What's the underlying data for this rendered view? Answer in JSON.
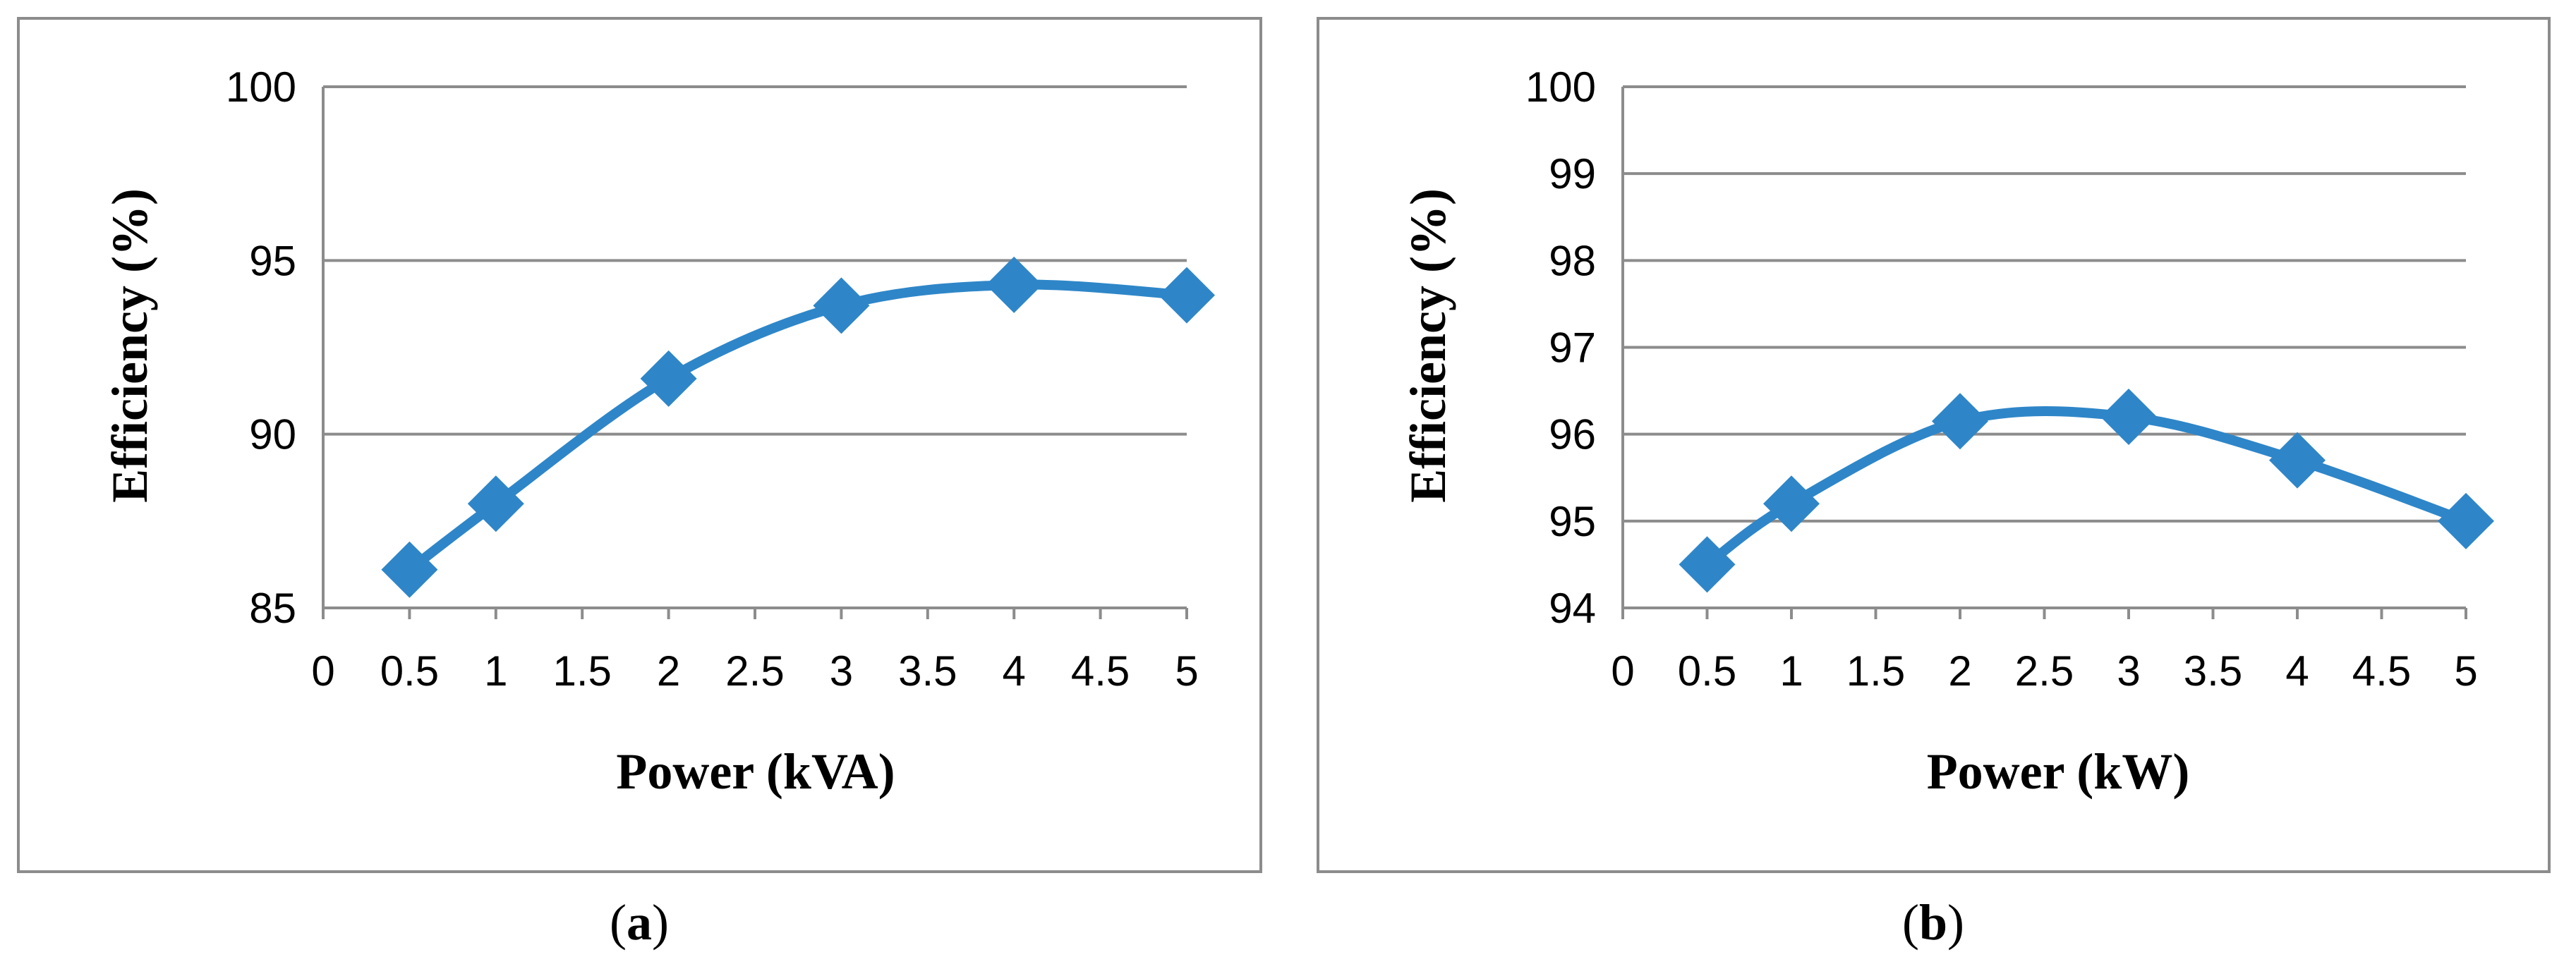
{
  "chart_data": [
    {
      "type": "line",
      "caption_letter": "a",
      "xlabel": "Power (kVA)",
      "ylabel": "Efficiency (%)",
      "xlim": [
        0,
        5
      ],
      "ylim": [
        85,
        100
      ],
      "xticks": [
        "0",
        "0.5",
        "1",
        "1.5",
        "2",
        "2.5",
        "3",
        "3.5",
        "4",
        "4.5",
        "5"
      ],
      "yticks": [
        "85",
        "90",
        "95",
        "100"
      ],
      "grid": "horizontal",
      "series": [
        {
          "x": [
            0.5,
            1,
            2,
            3,
            4,
            5
          ],
          "y": [
            86.1,
            88.0,
            91.6,
            93.7,
            94.3,
            94.0
          ],
          "color": "#2E86C8",
          "marker": "diamond",
          "smooth": true
        }
      ]
    },
    {
      "type": "line",
      "caption_letter": "b",
      "xlabel": "Power (kW)",
      "ylabel": "Efficiency (%)",
      "xlim": [
        0,
        5
      ],
      "ylim": [
        94,
        100
      ],
      "xticks": [
        "0",
        "0.5",
        "1",
        "1.5",
        "2",
        "2.5",
        "3",
        "3.5",
        "4",
        "4.5",
        "5"
      ],
      "yticks": [
        "94",
        "95",
        "96",
        "97",
        "98",
        "99",
        "100"
      ],
      "grid": "horizontal",
      "series": [
        {
          "x": [
            0.5,
            1,
            2,
            3,
            4,
            5
          ],
          "y": [
            94.5,
            95.2,
            96.15,
            96.2,
            95.7,
            95.0
          ],
          "color": "#2E86C8",
          "marker": "diamond",
          "smooth": true
        }
      ]
    }
  ]
}
